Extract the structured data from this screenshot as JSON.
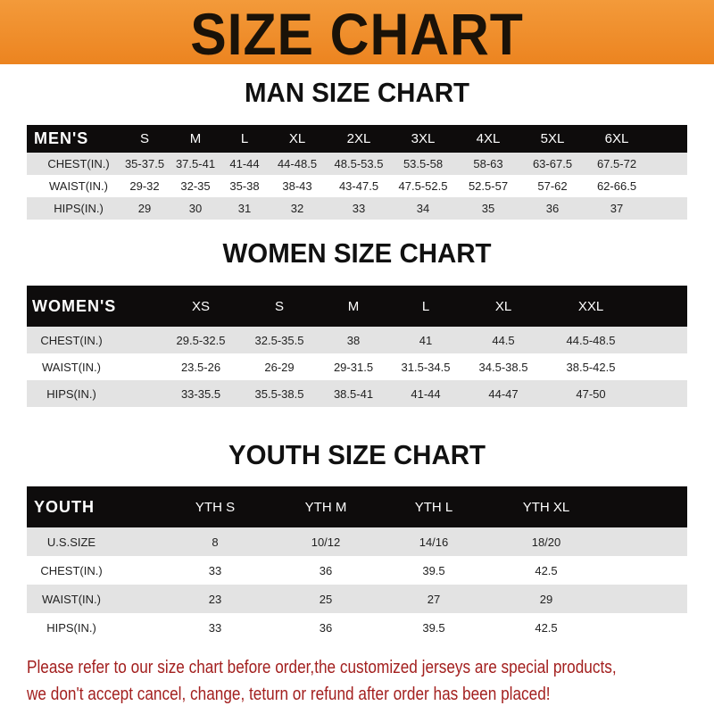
{
  "banner": {
    "title": "SIZE CHART",
    "color": "#ee8a24"
  },
  "men": {
    "title": "MAN SIZE CHART",
    "header_label": "MEN'S",
    "sizes": [
      "S",
      "M",
      "L",
      "XL",
      "2XL",
      "3XL",
      "4XL",
      "5XL",
      "6XL"
    ],
    "rows": [
      {
        "label": "CHEST(IN.)",
        "values": [
          "35-37.5",
          "37.5-41",
          "41-44",
          "44-48.5",
          "48.5-53.5",
          "53.5-58",
          "58-63",
          "63-67.5",
          "67.5-72"
        ]
      },
      {
        "label": "WAIST(IN.)",
        "values": [
          "29-32",
          "32-35",
          "35-38",
          "38-43",
          "43-47.5",
          "47.5-52.5",
          "52.5-57",
          "57-62",
          "62-66.5"
        ]
      },
      {
        "label": "HIPS(IN.)",
        "values": [
          "29",
          "30",
          "31",
          "32",
          "33",
          "34",
          "35",
          "36",
          "37"
        ]
      }
    ]
  },
  "women": {
    "title": "WOMEN SIZE CHART",
    "header_label": "WOMEN'S",
    "sizes": [
      "XS",
      "S",
      "M",
      "L",
      "XL",
      "XXL"
    ],
    "rows": [
      {
        "label": "CHEST(IN.)",
        "values": [
          "29.5-32.5",
          "32.5-35.5",
          "38",
          "41",
          "44.5",
          "44.5-48.5"
        ]
      },
      {
        "label": "WAIST(IN.)",
        "values": [
          "23.5-26",
          "26-29",
          "29-31.5",
          "31.5-34.5",
          "34.5-38.5",
          "38.5-42.5"
        ]
      },
      {
        "label": "HIPS(IN.)",
        "values": [
          "33-35.5",
          "35.5-38.5",
          "38.5-41",
          "41-44",
          "44-47",
          "47-50"
        ]
      }
    ]
  },
  "youth": {
    "title": "YOUTH SIZE CHART",
    "header_label": "YOUTH",
    "sizes": [
      "YTH S",
      "YTH M",
      "YTH L",
      "YTH XL"
    ],
    "rows": [
      {
        "label": "U.S.SIZE",
        "values": [
          "8",
          "10/12",
          "14/16",
          "18/20"
        ]
      },
      {
        "label": "CHEST(IN.)",
        "values": [
          "33",
          "36",
          "39.5",
          "42.5"
        ]
      },
      {
        "label": "WAIST(IN.)",
        "values": [
          "23",
          "25",
          "27",
          "29"
        ]
      },
      {
        "label": "HIPS(IN.)",
        "values": [
          "33",
          "36",
          "39.5",
          "42.5"
        ]
      }
    ]
  },
  "notice": {
    "line1": "Please refer to our size chart before order,the customized jerseys are special products,",
    "line2": "we don't accept cancel, change, teturn or refund after order has been placed!",
    "color": "#a3201f"
  }
}
